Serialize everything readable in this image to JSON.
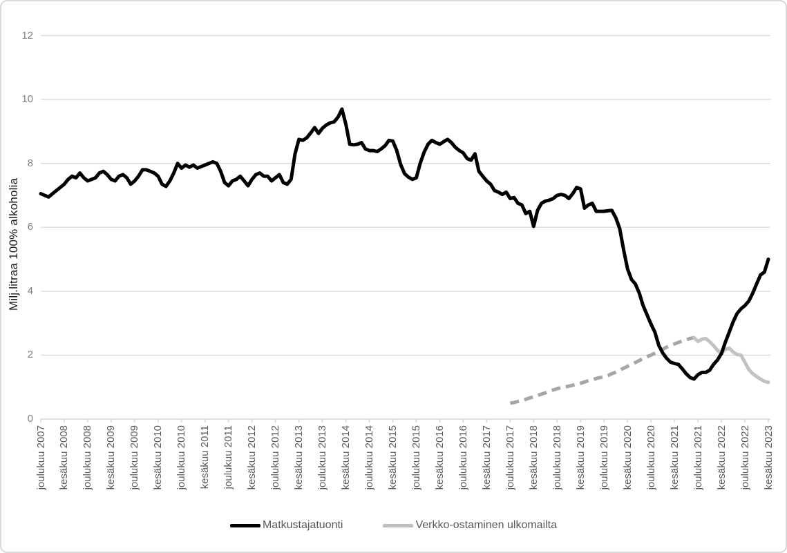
{
  "chart_data": {
    "type": "line",
    "title": "",
    "xlabel": "",
    "ylabel": "Milj.litraa 100% alkoholia",
    "ylim": [
      0,
      12
    ],
    "yticks": [
      0,
      2,
      4,
      6,
      8,
      10,
      12
    ],
    "grid": "horizontal",
    "legend_position": "bottom-center",
    "colors": {
      "gridline": "#d9d9d9",
      "axis_line": "#d0d0d0",
      "y_tick_text": "#7f7f7f",
      "x_tick_text": "#595959",
      "y_title_text": "#1a1a1a",
      "legend_text": "#595959"
    },
    "x_tick_labels": [
      "joulukuu 2007",
      "kesäkuu 2008",
      "joulukuu 2008",
      "kesäkuu 2009",
      "joulukuu 2009",
      "kesäkuu 2010",
      "joulukuu 2010",
      "kesäkuu 2011",
      "joulukuu 2011",
      "kesäkuu 2012",
      "joulukuu 2012",
      "kesäkuu 2013",
      "joulukuu 2013",
      "kesäkuu 2014",
      "joulukuu 2014",
      "kesäkuu 2015",
      "joulukuu 2015",
      "kesäkuu 2016",
      "joulukuu 2016",
      "kesäkuu 2017",
      "joulukuu 2017",
      "kesäkuu 2018",
      "joulukuu 2018",
      "kesäkuu 2019",
      "joulukuu 2019",
      "kesäkuu 2020",
      "joulukuu 2020",
      "kesäkuu 2021",
      "joulukuu 2021",
      "kesäkuu 2022",
      "joulukuu 2022",
      "kesäkuu 2023"
    ],
    "x_unit": "month",
    "x_range": [
      "joulukuu 2007",
      "kesäkuu 2023"
    ],
    "series": [
      {
        "name": "Matkustajatuonti",
        "color": "#000000",
        "style": "solid",
        "line_width": 5,
        "start": "joulukuu 2007",
        "interval_months": 1,
        "values": [
          7.05,
          7.0,
          6.95,
          7.05,
          7.15,
          7.25,
          7.35,
          7.5,
          7.6,
          7.55,
          7.7,
          7.55,
          7.45,
          7.5,
          7.55,
          7.7,
          7.75,
          7.65,
          7.5,
          7.45,
          7.6,
          7.65,
          7.55,
          7.35,
          7.45,
          7.6,
          7.8,
          7.8,
          7.75,
          7.7,
          7.6,
          7.35,
          7.28,
          7.45,
          7.7,
          8.0,
          7.85,
          7.95,
          7.88,
          7.95,
          7.85,
          7.9,
          7.95,
          8.0,
          8.05,
          8.0,
          7.75,
          7.4,
          7.3,
          7.45,
          7.5,
          7.6,
          7.45,
          7.3,
          7.5,
          7.65,
          7.7,
          7.6,
          7.6,
          7.45,
          7.55,
          7.65,
          7.4,
          7.35,
          7.5,
          8.3,
          8.75,
          8.72,
          8.8,
          8.95,
          9.12,
          8.94,
          9.1,
          9.2,
          9.27,
          9.3,
          9.45,
          9.7,
          9.22,
          8.6,
          8.58,
          8.6,
          8.65,
          8.45,
          8.4,
          8.4,
          8.37,
          8.45,
          8.55,
          8.72,
          8.7,
          8.4,
          7.97,
          7.68,
          7.57,
          7.5,
          7.55,
          8.0,
          8.35,
          8.6,
          8.72,
          8.65,
          8.6,
          8.68,
          8.75,
          8.65,
          8.5,
          8.4,
          8.33,
          8.15,
          8.1,
          8.3,
          7.75,
          7.6,
          7.45,
          7.35,
          7.15,
          7.1,
          7.03,
          7.1,
          6.9,
          6.93,
          6.75,
          6.7,
          6.43,
          6.5,
          6.03,
          6.53,
          6.75,
          6.82,
          6.85,
          6.9,
          7.0,
          7.03,
          7.0,
          6.9,
          7.05,
          7.25,
          7.2,
          6.6,
          6.7,
          6.75,
          6.5,
          6.5,
          6.5,
          6.52,
          6.53,
          6.3,
          5.96,
          5.3,
          4.7,
          4.37,
          4.23,
          3.94,
          3.55,
          3.26,
          2.97,
          2.72,
          2.3,
          2.07,
          1.9,
          1.78,
          1.74,
          1.71,
          1.57,
          1.42,
          1.3,
          1.25,
          1.39,
          1.46,
          1.46,
          1.53,
          1.71,
          1.85,
          2.05,
          2.4,
          2.72,
          3.04,
          3.3,
          3.45,
          3.55,
          3.69,
          3.94,
          4.23,
          4.51,
          4.6,
          5.0
        ]
      },
      {
        "name": "Verkko-ostaminen ulkomailta",
        "color": "#a6a6a6",
        "color_solid_part": "#c2c2c2",
        "legend_swatch_color": "#bfbfbf",
        "style": "dashed, then solid from joulukuu 2021",
        "line_width": 5,
        "start": "joulukuu 2017",
        "interval_months": 1,
        "dashed_until_index": 47,
        "values": [
          0.5,
          0.52,
          0.55,
          0.58,
          0.62,
          0.66,
          0.7,
          0.74,
          0.78,
          0.82,
          0.87,
          0.91,
          0.95,
          0.98,
          1.0,
          1.03,
          1.06,
          1.09,
          1.12,
          1.16,
          1.2,
          1.23,
          1.27,
          1.3,
          1.32,
          1.36,
          1.42,
          1.47,
          1.53,
          1.59,
          1.65,
          1.71,
          1.77,
          1.83,
          1.9,
          1.95,
          2.0,
          2.06,
          2.12,
          2.18,
          2.25,
          2.3,
          2.35,
          2.4,
          2.44,
          2.48,
          2.52,
          2.55,
          2.43,
          2.5,
          2.52,
          2.42,
          2.3,
          2.15,
          2.05,
          2.18,
          2.22,
          2.1,
          2.02,
          2.0,
          1.78,
          1.55,
          1.42,
          1.33,
          1.25,
          1.18,
          1.15
        ]
      }
    ]
  },
  "legend": {
    "items": [
      {
        "label": "Matkustajatuonti",
        "color": "#000000"
      },
      {
        "label": "Verkko-ostaminen ulkomailta",
        "color": "#bfbfbf"
      }
    ]
  }
}
